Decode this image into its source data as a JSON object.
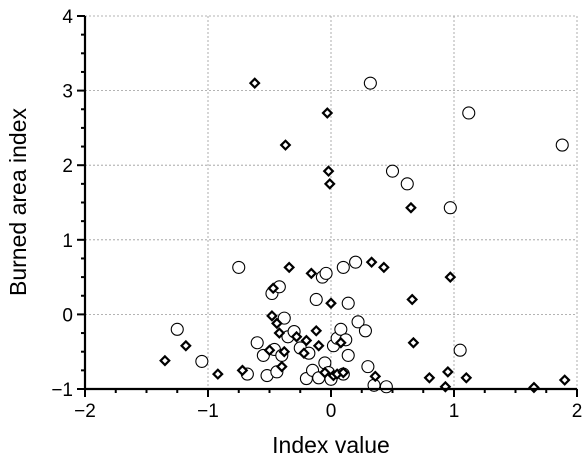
{
  "chart_data": {
    "type": "scatter",
    "title": "",
    "xlabel": "Index value",
    "ylabel": "Burned area index",
    "xlim": [
      -2,
      2
    ],
    "ylim": [
      -1,
      4
    ],
    "x_ticks": [
      -2,
      -1,
      0,
      1,
      2
    ],
    "y_ticks": [
      -1,
      0,
      1,
      2,
      3,
      4
    ],
    "x_tick_labels": [
      "−2",
      "−1",
      "0",
      "1",
      "2"
    ],
    "y_tick_labels": [
      "−1",
      "0",
      "1",
      "2",
      "3",
      "4"
    ],
    "grid": true,
    "legend": "none",
    "series": [
      {
        "marker": "circle",
        "points": [
          [
            -1.25,
            -0.2
          ],
          [
            -1.05,
            -0.63
          ],
          [
            -0.75,
            0.63
          ],
          [
            -0.68,
            -0.8
          ],
          [
            -0.6,
            -0.38
          ],
          [
            -0.55,
            -0.55
          ],
          [
            -0.52,
            -0.82
          ],
          [
            -0.48,
            0.28
          ],
          [
            -0.46,
            -0.47
          ],
          [
            -0.44,
            -0.77
          ],
          [
            -0.42,
            0.37
          ],
          [
            -0.4,
            -0.55
          ],
          [
            -0.38,
            -0.05
          ],
          [
            -0.35,
            -0.3
          ],
          [
            -0.3,
            -0.23
          ],
          [
            -0.25,
            -0.45
          ],
          [
            -0.2,
            -0.86
          ],
          [
            -0.18,
            -0.52
          ],
          [
            -0.15,
            -0.75
          ],
          [
            -0.12,
            0.2
          ],
          [
            -0.1,
            -0.85
          ],
          [
            -0.07,
            0.5
          ],
          [
            -0.05,
            -0.65
          ],
          [
            -0.04,
            0.55
          ],
          [
            -0.02,
            -0.78
          ],
          [
            0.0,
            -0.87
          ],
          [
            0.02,
            -0.42
          ],
          [
            0.05,
            -0.32
          ],
          [
            0.08,
            -0.2
          ],
          [
            0.1,
            -0.8
          ],
          [
            0.12,
            -0.34
          ],
          [
            0.1,
            0.63
          ],
          [
            0.14,
            -0.55
          ],
          [
            0.14,
            0.15
          ],
          [
            0.2,
            0.7
          ],
          [
            0.22,
            -0.1
          ],
          [
            0.28,
            -0.22
          ],
          [
            0.3,
            -0.7
          ],
          [
            0.32,
            3.1
          ],
          [
            0.35,
            -0.95
          ],
          [
            0.45,
            -0.97
          ],
          [
            0.5,
            1.92
          ],
          [
            0.62,
            1.75
          ],
          [
            0.97,
            1.43
          ],
          [
            1.05,
            -0.48
          ],
          [
            1.12,
            2.7
          ],
          [
            1.88,
            2.27
          ]
        ]
      },
      {
        "marker": "diamond",
        "points": [
          [
            -1.35,
            -0.62
          ],
          [
            -1.18,
            -0.42
          ],
          [
            -0.92,
            -0.8
          ],
          [
            -0.72,
            -0.75
          ],
          [
            -0.62,
            3.1
          ],
          [
            -0.5,
            -0.48
          ],
          [
            -0.48,
            -0.02
          ],
          [
            -0.47,
            0.35
          ],
          [
            -0.44,
            -0.12
          ],
          [
            -0.42,
            -0.25
          ],
          [
            -0.4,
            -0.7
          ],
          [
            -0.38,
            -0.5
          ],
          [
            -0.37,
            2.27
          ],
          [
            -0.34,
            0.63
          ],
          [
            -0.28,
            -0.3
          ],
          [
            -0.22,
            -0.52
          ],
          [
            -0.2,
            -0.35
          ],
          [
            -0.16,
            0.55
          ],
          [
            -0.12,
            -0.22
          ],
          [
            -0.1,
            -0.42
          ],
          [
            -0.05,
            -0.78
          ],
          [
            -0.03,
            2.7
          ],
          [
            -0.02,
            1.92
          ],
          [
            -0.01,
            1.75
          ],
          [
            0.0,
            0.15
          ],
          [
            0.02,
            -0.82
          ],
          [
            0.05,
            -0.8
          ],
          [
            0.08,
            -0.38
          ],
          [
            0.1,
            -0.78
          ],
          [
            0.33,
            0.7
          ],
          [
            0.36,
            -0.83
          ],
          [
            0.43,
            0.63
          ],
          [
            0.65,
            1.43
          ],
          [
            0.66,
            0.2
          ],
          [
            0.67,
            -0.38
          ],
          [
            0.8,
            -0.85
          ],
          [
            0.93,
            -0.97
          ],
          [
            0.95,
            -0.77
          ],
          [
            0.97,
            0.5
          ],
          [
            1.1,
            -0.85
          ],
          [
            1.65,
            -0.98
          ],
          [
            1.9,
            -0.88
          ]
        ]
      }
    ]
  }
}
